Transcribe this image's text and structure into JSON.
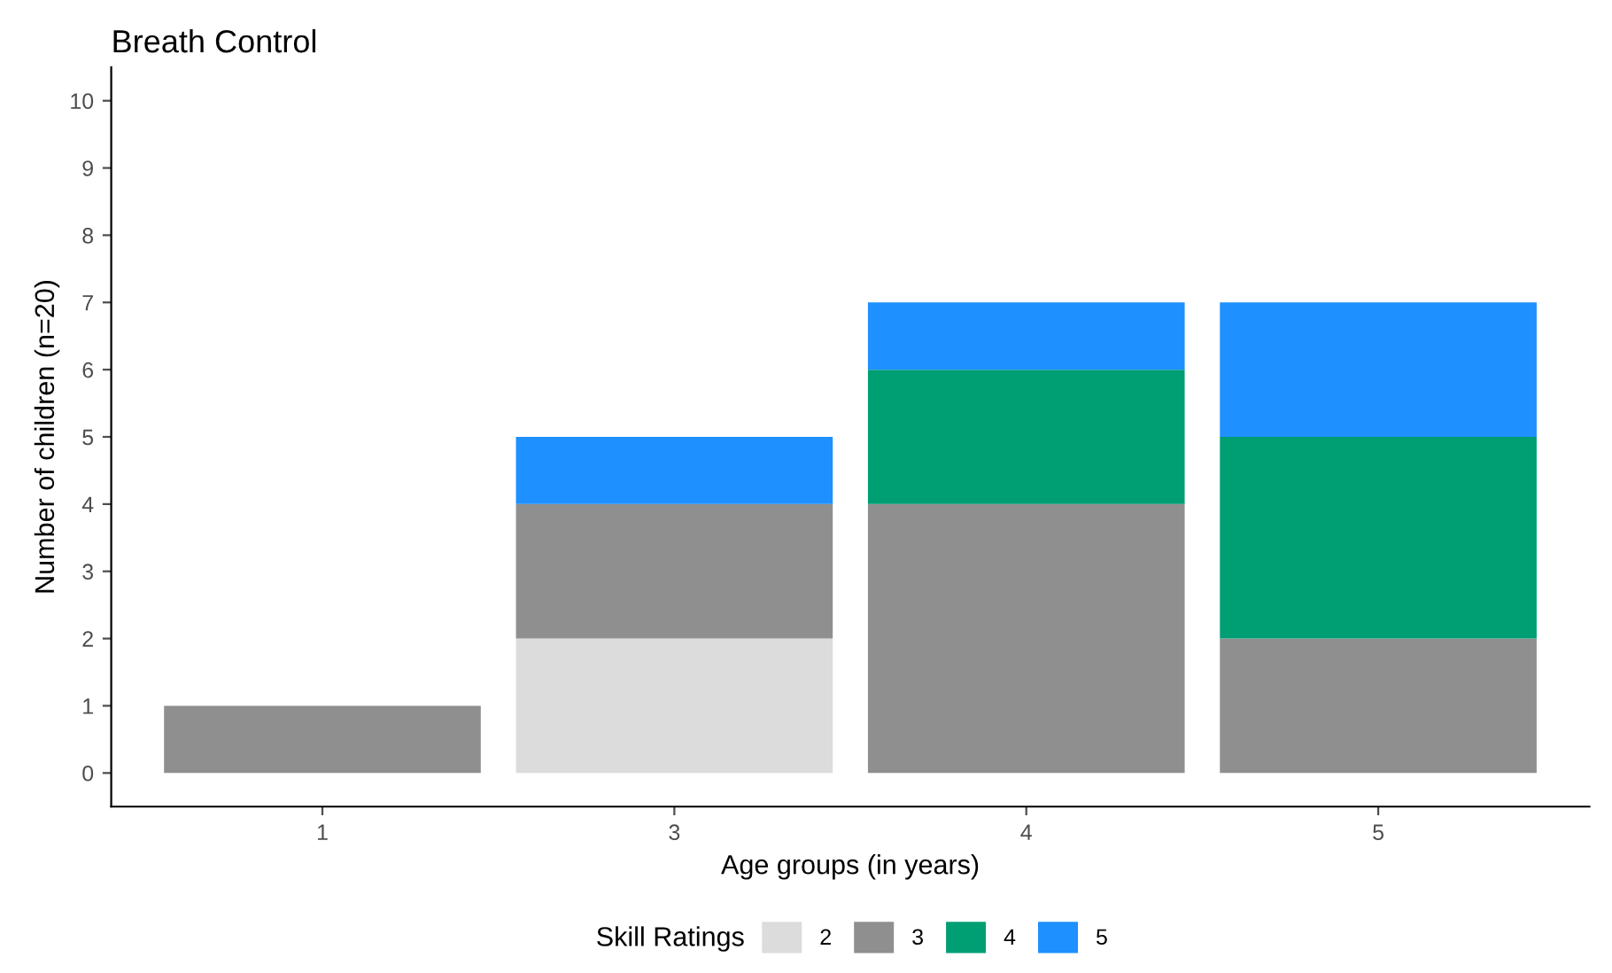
{
  "chart_data": {
    "type": "bar",
    "title": "Breath Control",
    "xlabel": "Age groups (in years)",
    "ylabel": "Number of children (n=20)",
    "legend_title": "Skill Ratings",
    "categories": [
      "1",
      "3",
      "4",
      "5"
    ],
    "series": [
      {
        "name": "2",
        "color": "#dcdcdc",
        "values": [
          0,
          2,
          0,
          0
        ]
      },
      {
        "name": "3",
        "color": "#8f8f8f",
        "values": [
          1,
          2,
          4,
          2
        ]
      },
      {
        "name": "4",
        "color": "#009e73",
        "values": [
          0,
          0,
          2,
          3
        ]
      },
      {
        "name": "5",
        "color": "#1e90ff",
        "values": [
          0,
          1,
          1,
          2
        ]
      }
    ],
    "stacked": true,
    "ylim": [
      -0.5,
      10.5
    ],
    "yticks": [
      0,
      1,
      2,
      3,
      4,
      5,
      6,
      7,
      8,
      9,
      10
    ],
    "grid": false,
    "legend": "bottom"
  }
}
